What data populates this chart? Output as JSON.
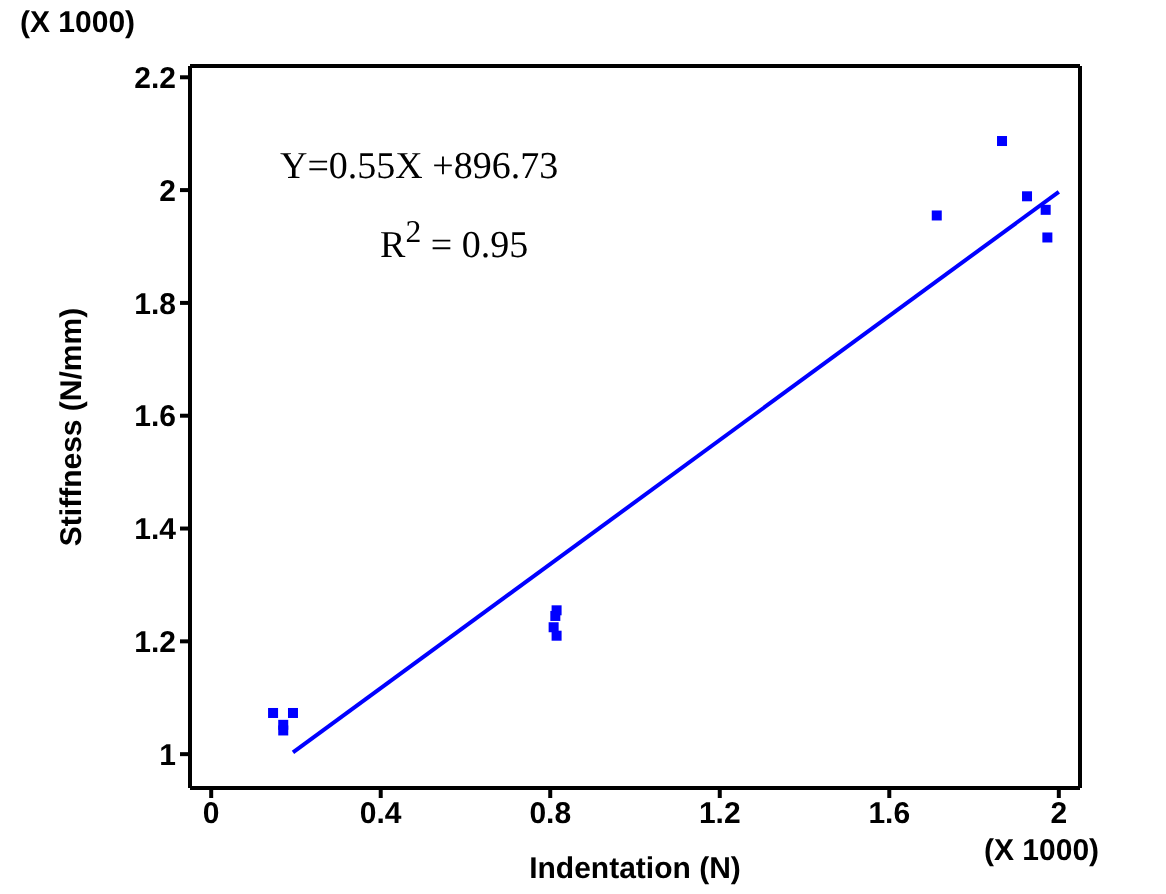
{
  "chart_data": {
    "type": "scatter",
    "xlabel": "Indentation (N)",
    "ylabel": "Stiffness (N/mm)",
    "xlim": [
      -0.05,
      2.05
    ],
    "ylim": [
      0.94,
      2.22
    ],
    "xticks": [
      0,
      0.4,
      0.8,
      1.2,
      1.6,
      2
    ],
    "yticks": [
      1,
      1.2,
      1.4,
      1.6,
      1.8,
      2,
      2.2
    ],
    "series": [
      {
        "color": "#0000ff",
        "marker": "square",
        "x": [
          0.146,
          0.193,
          0.17,
          0.17,
          0.815,
          0.812,
          0.808,
          0.815,
          1.712,
          1.866,
          1.925,
          1.969,
          1.973
        ],
        "values": [
          1.073,
          1.073,
          1.052,
          1.042,
          1.255,
          1.245,
          1.225,
          1.21,
          1.955,
          2.087,
          1.989,
          1.965,
          1.916
        ]
      },
      {
        "type": "line",
        "color": "#0000ff",
        "marker": "none",
        "line_style": "solid",
        "x": [
          0.193,
          2.0
        ],
        "values": [
          1.003,
          1.997
        ]
      }
    ],
    "annotations": [
      "Y=0.55X +896.73",
      "R$^{2}$ = 0.95",
      "(X 1000)",
      "(X 1000)"
    ],
    "grid": false,
    "legend": false
  }
}
